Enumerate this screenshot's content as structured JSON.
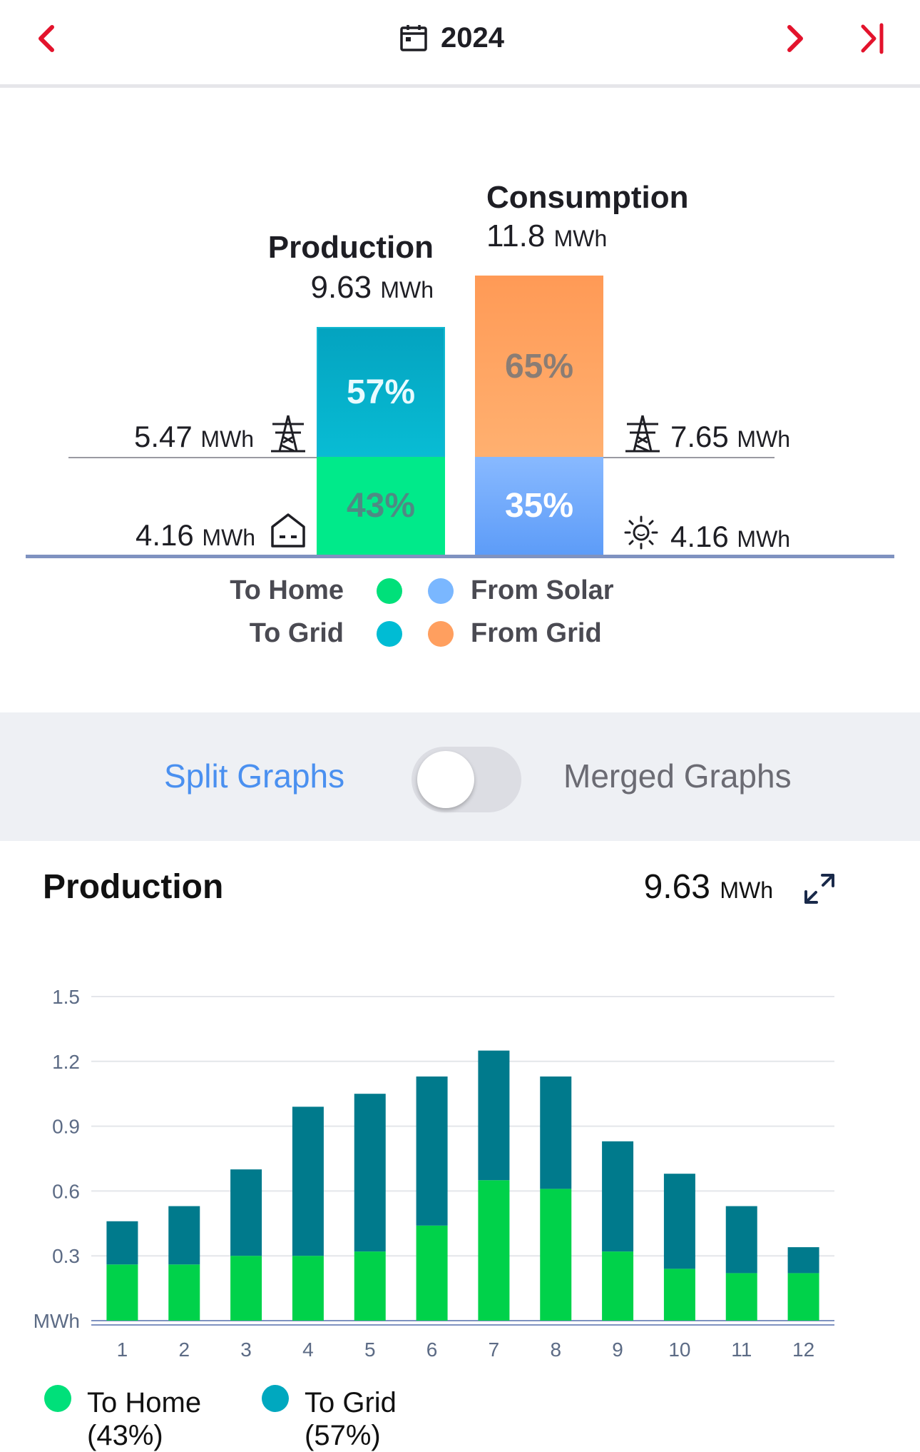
{
  "header": {
    "year": "2024",
    "prev_icon": "chevron-left-icon",
    "next_icon": "chevron-right-icon",
    "last_icon": "skip-to-end-icon",
    "calendar_icon": "calendar-icon",
    "accent": "#e3132c"
  },
  "summary": {
    "production": {
      "title": "Production",
      "value": "9.63",
      "unit": "MWh"
    },
    "consumption": {
      "title": "Consumption",
      "value": "11.8",
      "unit": "MWh"
    },
    "production_bar": {
      "to_grid_pct": "57%",
      "to_home_pct": "43%",
      "to_grid_color": "#07a5c3",
      "to_home_color": "#00ea8a"
    },
    "consumption_bar": {
      "from_grid_pct": "65%",
      "from_solar_pct": "35%",
      "from_grid_color": "#ff9f5f",
      "from_solar_color": "#6aa9ff"
    },
    "left": {
      "grid_value": "5.47",
      "grid_unit": "MWh",
      "grid_icon": "power-tower-icon",
      "home_value": "4.16",
      "home_unit": "MWh",
      "home_icon": "home-icon"
    },
    "right": {
      "grid_value": "7.65",
      "grid_unit": "MWh",
      "grid_icon": "power-tower-icon",
      "solar_value": "4.16",
      "solar_unit": "MWh",
      "solar_icon": "sun-icon"
    },
    "legend": {
      "to_home": "To Home",
      "to_grid": "To Grid",
      "from_solar": "From Solar",
      "from_grid": "From Grid",
      "to_home_color": "#00e07a",
      "to_grid_color": "#00bcd4",
      "from_solar_color": "#7ab7ff",
      "from_grid_color": "#ff9f5f"
    }
  },
  "view_toggle": {
    "split_label": "Split Graphs",
    "merged_label": "Merged Graphs",
    "selected": "Split Graphs",
    "active_color": "#4a90f0"
  },
  "production_section": {
    "title": "Production",
    "total_value": "9.63",
    "total_unit": "MWh",
    "expand_icon": "expand-icon"
  },
  "chart_data": {
    "type": "bar",
    "stacked": true,
    "categories": [
      "1",
      "2",
      "3",
      "4",
      "5",
      "6",
      "7",
      "8",
      "9",
      "10",
      "11",
      "12"
    ],
    "series": [
      {
        "name": "To Home",
        "color": "#00d24a",
        "values": [
          0.26,
          0.26,
          0.3,
          0.3,
          0.32,
          0.44,
          0.65,
          0.61,
          0.32,
          0.24,
          0.22,
          0.22
        ]
      },
      {
        "name": "To Grid",
        "color": "#007a8c",
        "values": [
          0.2,
          0.27,
          0.4,
          0.69,
          0.73,
          0.69,
          0.6,
          0.52,
          0.51,
          0.44,
          0.31,
          0.12
        ]
      }
    ],
    "ylabel": "MWh",
    "yticks": [
      "1.5",
      "1.2",
      "0.9",
      "0.6",
      "0.3"
    ],
    "ylim": [
      0,
      1.5
    ],
    "grid": true
  },
  "chart_legend": {
    "to_home_label": "To Home",
    "to_home_pct": "(43%)",
    "to_grid_label": "To Grid",
    "to_grid_pct": "(57%)",
    "to_home_color": "#00e07a",
    "to_grid_color": "#00a8bf"
  }
}
